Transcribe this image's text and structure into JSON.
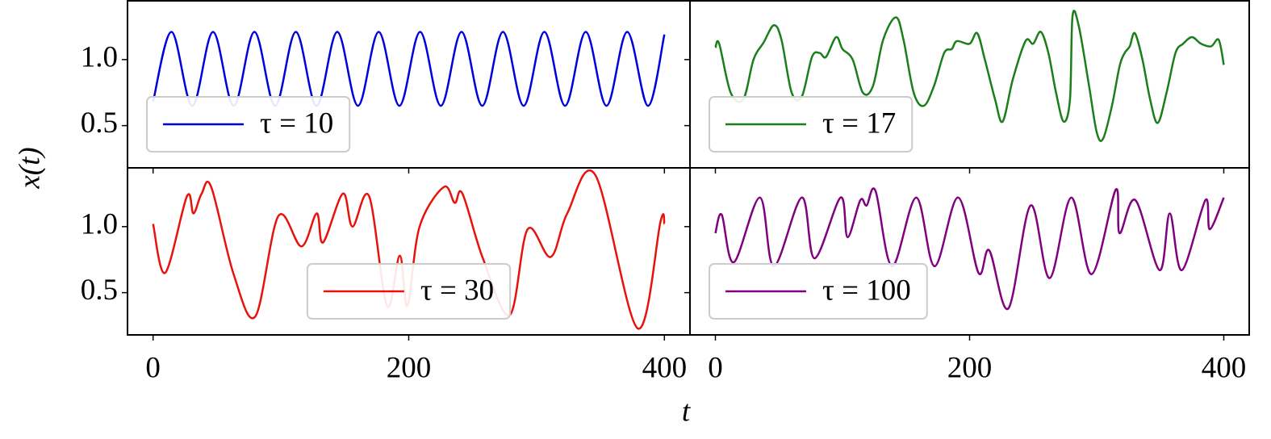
{
  "xlabel": "t",
  "ylabel": "x(t)",
  "chart_data": [
    {
      "type": "line",
      "x": [
        0,
        14.5,
        30.7,
        46.9,
        63.1,
        79.3,
        95.5,
        111.7,
        127.9,
        144.1,
        160.3,
        176.5,
        192.7,
        208.9,
        225.1,
        241.3,
        257.5,
        273.7,
        289.9,
        306.1,
        322.3,
        338.5,
        354.7,
        370.9,
        387.1,
        400
      ],
      "series": [
        {
          "name": "τ = 10",
          "color": "#0000dd",
          "values": [
            0.68,
            1.21,
            0.65,
            1.21,
            0.65,
            1.21,
            0.65,
            1.21,
            0.65,
            1.21,
            0.65,
            1.21,
            0.65,
            1.21,
            0.65,
            1.21,
            0.65,
            1.21,
            0.65,
            1.21,
            0.65,
            1.21,
            0.65,
            1.21,
            0.65,
            1.19
          ]
        }
      ],
      "xlim": [
        -20,
        420
      ],
      "ylim": [
        0.18,
        1.445
      ],
      "xticks": [
        0,
        200,
        400
      ],
      "yticks": [
        0.5,
        {
          "value": 1,
          "label": "1.0"
        }
      ],
      "legend": "lower left"
    },
    {
      "type": "line",
      "x": [
        0,
        3,
        12,
        22,
        30,
        38,
        46,
        52,
        60,
        68,
        76,
        82,
        87,
        95,
        100,
        108,
        116,
        124,
        132,
        142,
        148,
        156,
        164,
        172,
        180,
        186,
        190,
        200,
        206,
        212,
        220,
        226,
        234,
        244,
        250,
        256,
        262,
        268,
        274,
        279,
        281,
        286,
        294,
        300,
        305,
        312,
        318,
        322,
        326,
        330,
        336,
        342,
        348,
        355,
        362,
        368,
        375,
        382,
        390,
        396,
        400
      ],
      "series": [
        {
          "name": "τ = 17",
          "color": "#1a7f1a",
          "values": [
            1.09,
            1.12,
            0.75,
            0.7,
            1.0,
            1.13,
            1.26,
            1.15,
            0.75,
            0.72,
            1.02,
            1.05,
            1.02,
            1.17,
            1.08,
            1.0,
            0.75,
            0.8,
            1.15,
            1.32,
            1.15,
            0.75,
            0.65,
            0.8,
            1.05,
            1.08,
            1.14,
            1.12,
            1.2,
            1.0,
            0.7,
            0.53,
            0.85,
            1.14,
            1.12,
            1.21,
            1.05,
            0.75,
            0.53,
            0.7,
            1.33,
            1.25,
            0.8,
            0.45,
            0.4,
            0.65,
            0.95,
            1.05,
            1.1,
            1.2,
            1.0,
            0.7,
            0.52,
            0.75,
            1.05,
            1.12,
            1.17,
            1.12,
            1.1,
            1.15,
            0.96
          ]
        }
      ],
      "xlim": [
        -20,
        420
      ],
      "ylim": [
        0.18,
        1.445
      ],
      "xticks": [
        0,
        200,
        400
      ],
      "yticks": [
        0.5,
        {
          "value": 1,
          "label": "1.0"
        }
      ],
      "legend": "lower left"
    },
    {
      "type": "line",
      "x": [
        0,
        9.5,
        26.5,
        31.6,
        38,
        45.5,
        63,
        80,
        98,
        116,
        128,
        133,
        148.5,
        156,
        169,
        183,
        193,
        199,
        208.5,
        227.5,
        236,
        242,
        258,
        279,
        293,
        311,
        324,
        346,
        379,
        397,
        400
      ],
      "series": [
        {
          "name": "τ = 30",
          "color": "#e8120c",
          "values": [
            1.02,
            0.65,
            1.23,
            1.1,
            1.25,
            1.3,
            0.64,
            0.32,
            1.08,
            0.85,
            1.1,
            0.88,
            1.25,
            1.0,
            1.23,
            0.4,
            0.78,
            0.4,
            1.0,
            1.3,
            1.18,
            1.25,
            0.76,
            0.33,
            0.98,
            0.77,
            1.1,
            1.39,
            0.23,
            1.04,
            1.02
          ]
        }
      ],
      "xlim": [
        -20,
        420
      ],
      "ylim": [
        0.18,
        1.445
      ],
      "xticks": [
        0,
        200,
        400
      ],
      "yticks": [
        0.5,
        {
          "value": 1,
          "label": "1.0"
        }
      ],
      "legend": "lower center"
    },
    {
      "type": "line",
      "x": [
        0,
        5,
        14.5,
        35,
        46,
        68,
        78,
        98.5,
        104,
        114,
        119,
        126,
        139,
        158,
        172.5,
        191,
        207,
        215.5,
        230.5,
        248,
        263,
        280,
        296,
        315,
        318,
        330.5,
        349.5,
        357.5,
        367,
        385.5,
        389,
        400
      ],
      "series": [
        {
          "name": "τ = 100",
          "color": "#800080",
          "values": [
            0.95,
            1.09,
            0.73,
            1.22,
            0.7,
            1.22,
            0.76,
            1.22,
            0.92,
            1.2,
            1.16,
            1.27,
            0.7,
            1.22,
            0.7,
            1.22,
            0.65,
            0.82,
            0.38,
            1.16,
            0.61,
            1.22,
            0.64,
            1.28,
            0.95,
            1.2,
            0.67,
            1.1,
            0.67,
            1.2,
            0.98,
            1.22
          ]
        }
      ],
      "xlim": [
        -20,
        420
      ],
      "ylim": [
        0.18,
        1.445
      ],
      "xticks": [
        0,
        200,
        400
      ],
      "yticks": [
        0.5,
        {
          "value": 1,
          "label": "1.0"
        }
      ],
      "legend": "lower left"
    }
  ]
}
